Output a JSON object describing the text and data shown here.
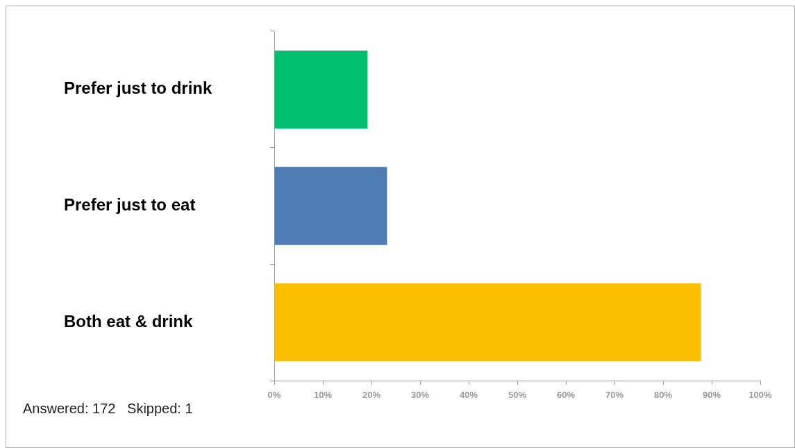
{
  "chart_data": {
    "type": "bar",
    "orientation": "horizontal",
    "categories": [
      "Prefer just to drink",
      "Prefer just to eat",
      "Both eat & drink"
    ],
    "values": [
      19.2,
      23.2,
      87.8
    ],
    "colors": [
      "#00bf6f",
      "#507cb6",
      "#f9be00"
    ],
    "xlim": [
      0,
      100
    ],
    "xticks": [
      {
        "value": 0,
        "label": "0%"
      },
      {
        "value": 10,
        "label": "10%"
      },
      {
        "value": 20,
        "label": "20%"
      },
      {
        "value": 30,
        "label": "30%"
      },
      {
        "value": 40,
        "label": "40%"
      },
      {
        "value": 50,
        "label": "50%"
      },
      {
        "value": 60,
        "label": "60%"
      },
      {
        "value": 70,
        "label": "70%"
      },
      {
        "value": 80,
        "label": "80%"
      },
      {
        "value": 90,
        "label": "90%"
      },
      {
        "value": 100,
        "label": "100%"
      }
    ],
    "annotations": [
      "Answered: 172   Skipped: 1"
    ]
  }
}
